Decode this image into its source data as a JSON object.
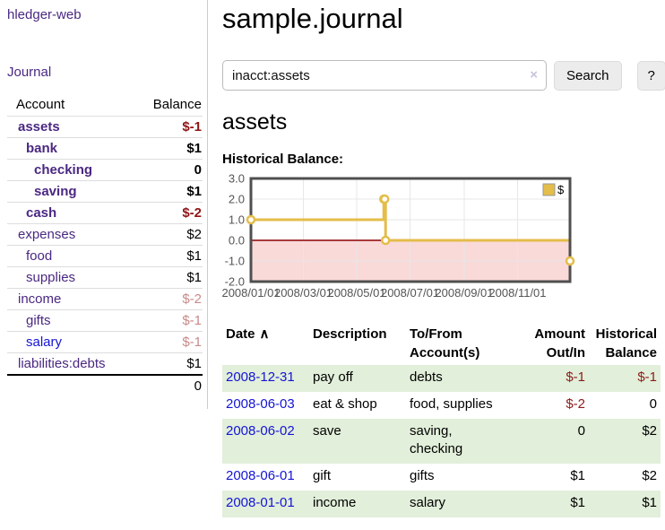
{
  "colors": {
    "link_purple": "#4a2882",
    "link_blue": "#1414d6",
    "negative_strong": "#8f1515",
    "negative_soft": "#c98a8a",
    "row_green": "#e2efda",
    "divider": "#cccccc"
  },
  "sidebar": {
    "brand": "hledger-web",
    "journal_link": "Journal",
    "table": {
      "account_header": "Account",
      "balance_header": "Balance",
      "rows": [
        {
          "name": "assets",
          "level": 1,
          "bold": true,
          "link_color": "purple",
          "balance": "$-1",
          "balance_style": "neg"
        },
        {
          "name": "bank",
          "level": 2,
          "bold": true,
          "link_color": "purple",
          "balance": "$1",
          "balance_style": "pos"
        },
        {
          "name": "checking",
          "level": 3,
          "bold": true,
          "link_color": "purple",
          "balance": "0",
          "balance_style": "pos"
        },
        {
          "name": "saving",
          "level": 3,
          "bold": true,
          "link_color": "purple",
          "balance": "$1",
          "balance_style": "pos"
        },
        {
          "name": "cash",
          "level": 2,
          "bold": true,
          "link_color": "purple",
          "balance": "$-2",
          "balance_style": "neg"
        },
        {
          "name": "expenses",
          "level": 1,
          "bold": false,
          "link_color": "purple",
          "balance": "$2",
          "balance_style": "pos"
        },
        {
          "name": "food",
          "level": 2,
          "bold": false,
          "link_color": "purple",
          "balance": "$1",
          "balance_style": "pos"
        },
        {
          "name": "supplies",
          "level": 2,
          "bold": false,
          "link_color": "purple",
          "balance": "$1",
          "balance_style": "pos"
        },
        {
          "name": "income",
          "level": 1,
          "bold": false,
          "link_color": "purple",
          "balance": "$-2",
          "balance_style": "neg-soft"
        },
        {
          "name": "gifts",
          "level": 2,
          "bold": false,
          "link_color": "purple",
          "balance": "$-1",
          "balance_style": "neg-soft"
        },
        {
          "name": "salary",
          "level": 2,
          "bold": false,
          "link_color": "blue",
          "balance": "$-1",
          "balance_style": "neg-soft"
        },
        {
          "name": "liabilities:debts",
          "level": 1,
          "bold": false,
          "link_color": "purple",
          "balance": "$1",
          "balance_style": "pos"
        }
      ],
      "total": "0"
    }
  },
  "header": {
    "title": "sample.journal"
  },
  "search": {
    "value": "inacct:assets",
    "clear_icon": "×",
    "search_button": "Search",
    "help_button": "?"
  },
  "account_page": {
    "title": "assets",
    "chart_label": "Historical Balance:"
  },
  "chart_data": {
    "type": "line",
    "steps": true,
    "title": "Historical Balance",
    "xlabel": "",
    "ylabel": "",
    "series": [
      {
        "name": "$",
        "points": [
          [
            "2008-01-01",
            1
          ],
          [
            "2008-06-01",
            2
          ],
          [
            "2008-06-02",
            2
          ],
          [
            "2008-06-03",
            0
          ],
          [
            "2008-12-31",
            -1
          ]
        ]
      }
    ],
    "xlim": [
      "2008-01-01",
      "2008-12-31"
    ],
    "ylim": [
      -2,
      3
    ],
    "yticks": [
      "3.0",
      "2.0",
      "1.0",
      "0.0",
      "-1.0",
      "-2.0"
    ],
    "ytick_values": [
      3,
      2,
      1,
      0,
      -1,
      -2
    ],
    "xticks": [
      {
        "t": "2008-01-01",
        "label": "2008/01/01"
      },
      {
        "t": "2008-03-01",
        "label": "2008/03/01"
      },
      {
        "t": "2008-05-01",
        "label": "2008/05/01"
      },
      {
        "t": "2008-07-01",
        "label": "2008/07/01"
      },
      {
        "t": "2008-09-01",
        "label": "2008/09/01"
      },
      {
        "t": "2008-11-01",
        "label": "2008/11/01"
      }
    ],
    "grid": true,
    "legend": {
      "label": "$",
      "position": "top-right"
    },
    "negative_region": true,
    "colors": {
      "line": "#e4bd4a",
      "marker_fill": "#ffffff",
      "negative_region": "#fad9d9",
      "zero_line": "#8b0000",
      "grid": "#e7e7e7",
      "border": "#4f4f4f",
      "tick_text": "#545454",
      "legend_border": "#999999",
      "legend_text": "#000000"
    }
  },
  "register": {
    "columns": [
      {
        "lines": [
          "Date"
        ],
        "align": "left",
        "sortable": true,
        "sort_icon": "∧"
      },
      {
        "lines": [
          "Description"
        ],
        "align": "left"
      },
      {
        "lines": [
          "To/From",
          "Account(s)"
        ],
        "align": "left"
      },
      {
        "lines": [
          "Amount",
          "Out/In"
        ],
        "align": "right"
      },
      {
        "lines": [
          "Historical",
          "Balance"
        ],
        "align": "right"
      }
    ],
    "rows": [
      {
        "date": "2008-12-31",
        "description": "pay off",
        "accounts": [
          "debts"
        ],
        "amount": "$-1",
        "amount_negative": true,
        "balance": "$-1",
        "balance_negative": true,
        "shaded": true
      },
      {
        "date": "2008-06-03",
        "description": "eat & shop",
        "accounts": [
          "food, supplies"
        ],
        "amount": "$-2",
        "amount_negative": true,
        "balance": "0",
        "balance_negative": false,
        "shaded": false
      },
      {
        "date": "2008-06-02",
        "description": "save",
        "accounts": [
          "saving,",
          "checking"
        ],
        "amount": "0",
        "amount_negative": false,
        "balance": "$2",
        "balance_negative": false,
        "shaded": true
      },
      {
        "date": "2008-06-01",
        "description": "gift",
        "accounts": [
          "gifts"
        ],
        "amount": "$1",
        "amount_negative": false,
        "balance": "$2",
        "balance_negative": false,
        "shaded": false
      },
      {
        "date": "2008-01-01",
        "description": "income",
        "accounts": [
          "salary"
        ],
        "amount": "$1",
        "amount_negative": false,
        "balance": "$1",
        "balance_negative": false,
        "shaded": true
      }
    ]
  }
}
